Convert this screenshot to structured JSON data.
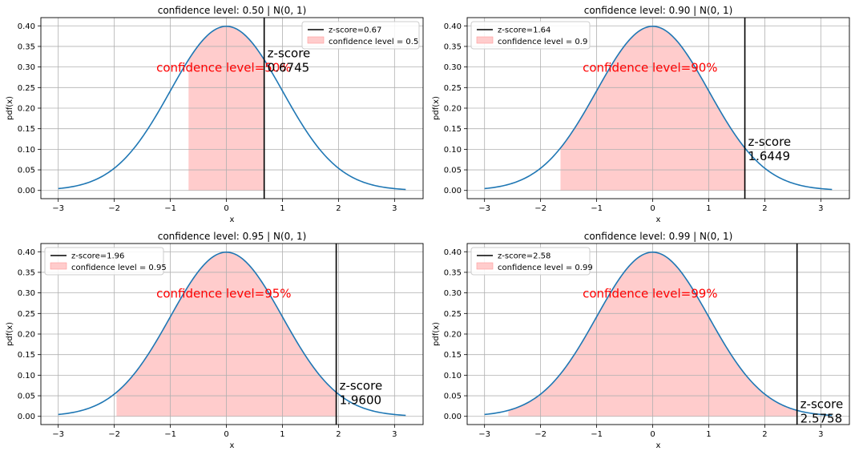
{
  "figure": {
    "background": "#ffffff"
  },
  "colors": {
    "curve": "#1f77b4",
    "fill": "#ffcccc",
    "zline": "#000000",
    "label": "#ff0000",
    "grid": "#b0b0b0",
    "axis": "#000000"
  },
  "chart_data": [
    {
      "type": "line",
      "title": "confidence level: 0.50 | N(0, 1)",
      "xlabel": "x",
      "ylabel": "pdf(x)",
      "xlim": [
        -3.31,
        3.51
      ],
      "ylim": [
        -0.02,
        0.42
      ],
      "xticks": [
        -3,
        -2,
        -1,
        0,
        1,
        2,
        3
      ],
      "xtick_labels": [
        "−3",
        "−2",
        "−1",
        "0",
        "1",
        "2",
        "3"
      ],
      "yticks": [
        0,
        0.05,
        0.1,
        0.15,
        0.2,
        0.25,
        0.3,
        0.35,
        0.4
      ],
      "ytick_labels": [
        "0.00",
        "0.05",
        "0.10",
        "0.15",
        "0.20",
        "0.25",
        "0.30",
        "0.35",
        "0.40"
      ],
      "grid": true,
      "curve": {
        "function": "normal_pdf",
        "mean": 0,
        "sd": 1,
        "x_range": [
          -3,
          3.2
        ]
      },
      "shaded_region": [
        -0.6745,
        0.6745
      ],
      "zscore_line": 0.6745,
      "legend": {
        "position": "upper right",
        "line_label": "z-score=0.67",
        "fill_label": "confidence level = 0.5"
      },
      "annotation_text": "confidence level=50%",
      "annotation_pos": [
        -1.25,
        0.3
      ],
      "zscore_text_title": "z-score",
      "zscore_text_value": "0.6745"
    },
    {
      "type": "line",
      "title": "confidence level: 0.90 | N(0, 1)",
      "xlabel": "x",
      "ylabel": "pdf(x)",
      "xlim": [
        -3.31,
        3.51
      ],
      "ylim": [
        -0.02,
        0.42
      ],
      "xticks": [
        -3,
        -2,
        -1,
        0,
        1,
        2,
        3
      ],
      "xtick_labels": [
        "−3",
        "−2",
        "−1",
        "0",
        "1",
        "2",
        "3"
      ],
      "yticks": [
        0,
        0.05,
        0.1,
        0.15,
        0.2,
        0.25,
        0.3,
        0.35,
        0.4
      ],
      "ytick_labels": [
        "0.00",
        "0.05",
        "0.10",
        "0.15",
        "0.20",
        "0.25",
        "0.30",
        "0.35",
        "0.40"
      ],
      "grid": true,
      "curve": {
        "function": "normal_pdf",
        "mean": 0,
        "sd": 1,
        "x_range": [
          -3,
          3.2
        ]
      },
      "shaded_region": [
        -1.6449,
        1.6449
      ],
      "zscore_line": 1.6449,
      "legend": {
        "position": "upper left",
        "line_label": "z-score=1.64",
        "fill_label": "confidence level = 0.9"
      },
      "annotation_text": "confidence level=90%",
      "annotation_pos": [
        -1.25,
        0.3
      ],
      "zscore_text_title": "z-score",
      "zscore_text_value": "1.6449"
    },
    {
      "type": "line",
      "title": "confidence level: 0.95 | N(0, 1)",
      "xlabel": "x",
      "ylabel": "pdf(x)",
      "xlim": [
        -3.31,
        3.51
      ],
      "ylim": [
        -0.02,
        0.42
      ],
      "xticks": [
        -3,
        -2,
        -1,
        0,
        1,
        2,
        3
      ],
      "xtick_labels": [
        "−3",
        "−2",
        "−1",
        "0",
        "1",
        "2",
        "3"
      ],
      "yticks": [
        0,
        0.05,
        0.1,
        0.15,
        0.2,
        0.25,
        0.3,
        0.35,
        0.4
      ],
      "ytick_labels": [
        "0.00",
        "0.05",
        "0.10",
        "0.15",
        "0.20",
        "0.25",
        "0.30",
        "0.35",
        "0.40"
      ],
      "grid": true,
      "curve": {
        "function": "normal_pdf",
        "mean": 0,
        "sd": 1,
        "x_range": [
          -3,
          3.2
        ]
      },
      "shaded_region": [
        -1.96,
        1.96
      ],
      "zscore_line": 1.96,
      "legend": {
        "position": "upper left",
        "line_label": "z-score=1.96",
        "fill_label": "confidence level = 0.95"
      },
      "annotation_text": "confidence level=95%",
      "annotation_pos": [
        -1.25,
        0.3
      ],
      "zscore_text_title": "z-score",
      "zscore_text_value": "1.9600"
    },
    {
      "type": "line",
      "title": "confidence level: 0.99 | N(0, 1)",
      "xlabel": "x",
      "ylabel": "pdf(x)",
      "xlim": [
        -3.31,
        3.51
      ],
      "ylim": [
        -0.02,
        0.42
      ],
      "xticks": [
        -3,
        -2,
        -1,
        0,
        1,
        2,
        3
      ],
      "xtick_labels": [
        "−3",
        "−2",
        "−1",
        "0",
        "1",
        "2",
        "3"
      ],
      "yticks": [
        0,
        0.05,
        0.1,
        0.15,
        0.2,
        0.25,
        0.3,
        0.35,
        0.4
      ],
      "ytick_labels": [
        "0.00",
        "0.05",
        "0.10",
        "0.15",
        "0.20",
        "0.25",
        "0.30",
        "0.35",
        "0.40"
      ],
      "grid": true,
      "curve": {
        "function": "normal_pdf",
        "mean": 0,
        "sd": 1,
        "x_range": [
          -3,
          3.2
        ]
      },
      "shaded_region": [
        -2.5758,
        2.5758
      ],
      "zscore_line": 2.5758,
      "legend": {
        "position": "upper left",
        "line_label": "z-score=2.58",
        "fill_label": "confidence level = 0.99"
      },
      "annotation_text": "confidence level=99%",
      "annotation_pos": [
        -1.25,
        0.3
      ],
      "zscore_text_title": "z-score",
      "zscore_text_value": "2.5758"
    }
  ]
}
